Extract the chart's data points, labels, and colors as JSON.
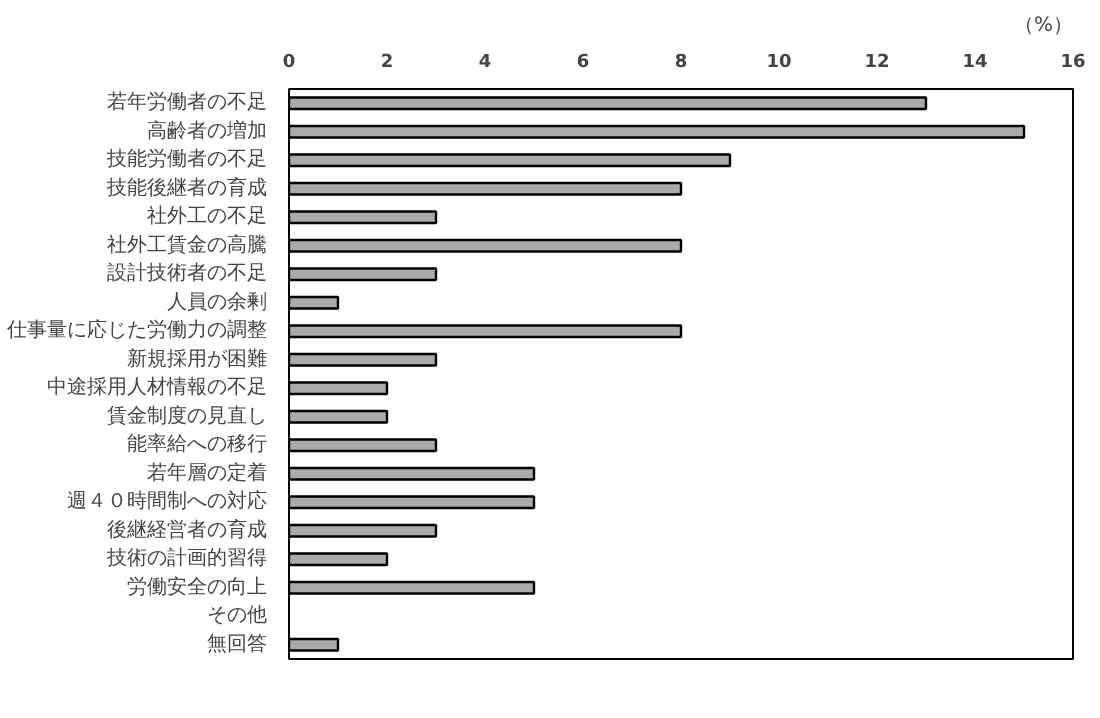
{
  "chart_data": {
    "type": "bar",
    "orientation": "horizontal",
    "xlabel": "（%）",
    "categories": [
      "若年労働者の不足",
      "高齢者の増加",
      "技能労働者の不足",
      "技能後継者の育成",
      "社外工の不足",
      "社外工賃金の高騰",
      "設計技術者の不足",
      "人員の余剰",
      "仕事量に応じた労働力の調整",
      "新規採用が困難",
      "中途採用人材情報の不足",
      "賃金制度の見直し",
      "能率給への移行",
      "若年層の定着",
      "週４０時間制への対応",
      "後継経営者の育成",
      "技術の計画的習得",
      "労働安全の向上",
      "その他",
      "無回答"
    ],
    "values": [
      13,
      15,
      9,
      8,
      3,
      8,
      3,
      1,
      8,
      3,
      2,
      2,
      3,
      5,
      5,
      3,
      2,
      5,
      0,
      1
    ],
    "color": "#aaaaaa",
    "xlim": [
      0,
      16
    ],
    "xticks": [
      0,
      2,
      4,
      6,
      8,
      10,
      12,
      14,
      16
    ],
    "grid": false
  }
}
